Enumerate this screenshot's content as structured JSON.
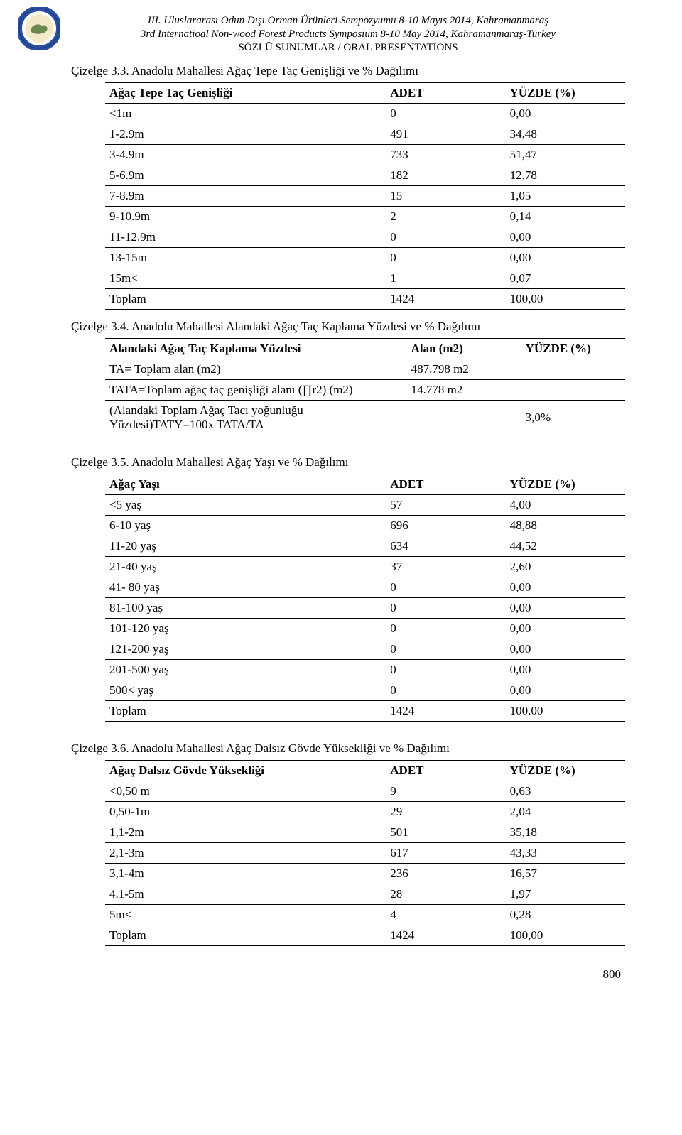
{
  "header": {
    "line1": "III. Uluslararası Odun Dışı Orman Ürünleri Sempozyumu 8-10 Mayıs 2014, Kahramanmaraş",
    "line2": "3rd Internatioal Non-wood Forest Products Symposium 8-10 May 2014, Kahramanmaraş-Turkey",
    "line3": "SÖZLÜ SUNUMLAR / ORAL PRESENTATIONS"
  },
  "logo": {
    "ring_color": "#2b4fa0",
    "inner_bg": "#f3e9c8",
    "map_color": "#6b8a52"
  },
  "table33": {
    "caption": "Çizelge 3.3. Anadolu Mahallesi Ağaç Tepe Taç Genişliği ve % Dağılımı",
    "head": [
      "Ağaç Tepe Taç Genişliği",
      "ADET",
      "YÜZDE (%)"
    ],
    "rows": [
      [
        "<1m",
        "0",
        "0,00"
      ],
      [
        "1-2.9m",
        "491",
        "34,48"
      ],
      [
        "3-4.9m",
        "733",
        "51,47"
      ],
      [
        "5-6.9m",
        "182",
        "12,78"
      ],
      [
        "7-8.9m",
        "15",
        "1,05"
      ],
      [
        "9-10.9m",
        "2",
        "0,14"
      ],
      [
        "11-12.9m",
        "0",
        "0,00"
      ],
      [
        "13-15m",
        "0",
        "0,00"
      ],
      [
        "15m<",
        "1",
        "0,07"
      ],
      [
        "Toplam",
        "1424",
        "100,00"
      ]
    ]
  },
  "table34": {
    "caption": "Çizelge 3.4. Anadolu Mahallesi Alandaki Ağaç Taç Kaplama Yüzdesi  ve % Dağılımı",
    "head": [
      "Alandaki Ağaç Taç Kaplama Yüzdesi",
      "Alan (m2)",
      "YÜZDE (%)"
    ],
    "rows": [
      [
        "TA= Toplam alan (m2)",
        "487.798 m2",
        ""
      ],
      [
        "TATA=Toplam ağaç taç genişliği alanı (∏r2) (m2)",
        "14.778 m2",
        ""
      ],
      [
        "(Alandaki   Toplam   Ağaç   Tacı   yoğunluğu Yüzdesi)TATY=100x TATA/TA",
        "",
        "3,0%"
      ]
    ]
  },
  "table35": {
    "caption": "Çizelge 3.5. Anadolu Mahallesi Ağaç Yaşı ve % Dağılımı",
    "head": [
      "Ağaç Yaşı",
      "ADET",
      "YÜZDE (%)"
    ],
    "rows": [
      [
        "<5 yaş",
        "57",
        "4,00"
      ],
      [
        "6-10 yaş",
        "696",
        "48,88"
      ],
      [
        "11-20 yaş",
        "634",
        "44,52"
      ],
      [
        "21-40 yaş",
        "37",
        "2,60"
      ],
      [
        "41- 80 yaş",
        "0",
        "0,00"
      ],
      [
        "81-100 yaş",
        "0",
        "0,00"
      ],
      [
        "101-120 yaş",
        "0",
        "0,00"
      ],
      [
        "121-200 yaş",
        "0",
        "0,00"
      ],
      [
        "201-500 yaş",
        "0",
        "0,00"
      ],
      [
        "500< yaş",
        "0",
        "0,00"
      ],
      [
        "Toplam",
        "1424",
        "100.00"
      ]
    ]
  },
  "table36": {
    "caption": "Çizelge 3.6. Anadolu Mahallesi Ağaç Dalsız Gövde Yüksekliği ve % Dağılımı",
    "head": [
      "Ağaç Dalsız Gövde Yüksekliği",
      "ADET",
      "YÜZDE (%)"
    ],
    "rows": [
      [
        "<0,50 m",
        "9",
        "0,63"
      ],
      [
        "0,50-1m",
        "29",
        "2,04"
      ],
      [
        "1,1-2m",
        "501",
        "35,18"
      ],
      [
        "2,1-3m",
        "617",
        "43,33"
      ],
      [
        "3,1-4m",
        "236",
        "16,57"
      ],
      [
        "4.1-5m",
        "28",
        "1,97"
      ],
      [
        "5m<",
        "4",
        "0,28"
      ],
      [
        "Toplam",
        "1424",
        "100,00"
      ]
    ]
  },
  "page_number": "800"
}
